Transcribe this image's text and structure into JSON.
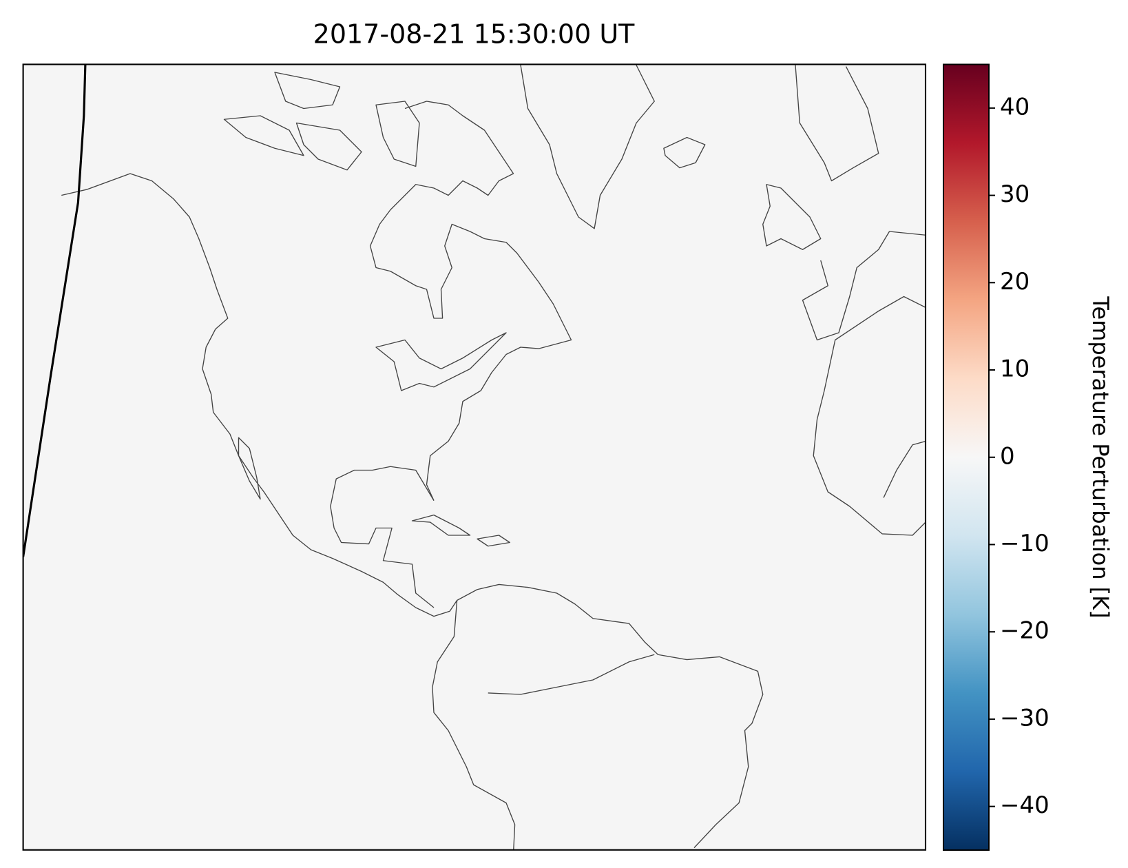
{
  "chart_data": {
    "type": "map",
    "title": "2017-08-21 15:30:00 UT",
    "colorbar": {
      "label": "Temperature Perturbation [K]",
      "cmap": "RdBu_r",
      "lim": [
        -45,
        45
      ],
      "ticks": [
        {
          "value": -40,
          "label": "−40"
        },
        {
          "value": -30,
          "label": "−30"
        },
        {
          "value": -20,
          "label": "−20"
        },
        {
          "value": -10,
          "label": "−10"
        },
        0,
        10,
        20,
        30,
        40
      ]
    }
  }
}
